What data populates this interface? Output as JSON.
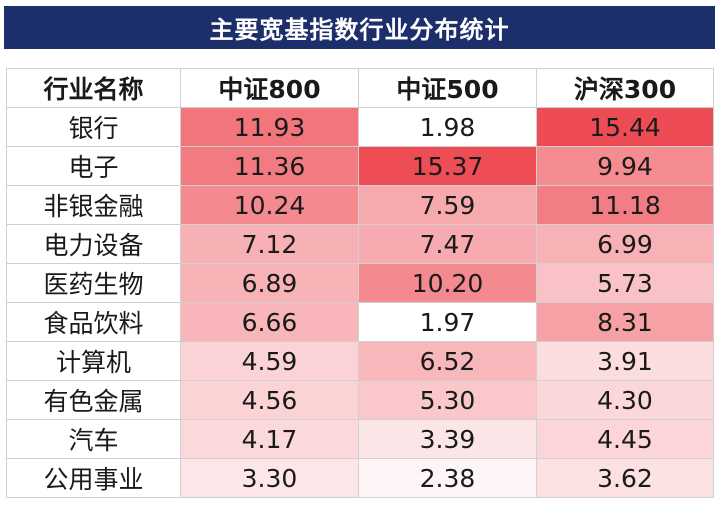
{
  "title": "主要宽基指数行业分布统计",
  "chart_data": {
    "type": "table",
    "title": "主要宽基指数行业分布统计",
    "columns": [
      "行业名称",
      "中证800",
      "中证500",
      "沪深300"
    ],
    "rows": [
      {
        "industry": "银行",
        "values": [
          "11.93",
          "1.98",
          "15.44"
        ]
      },
      {
        "industry": "电子",
        "values": [
          "11.36",
          "15.37",
          "9.94"
        ]
      },
      {
        "industry": "非银金融",
        "values": [
          "10.24",
          "7.59",
          "11.18"
        ]
      },
      {
        "industry": "电力设备",
        "values": [
          "7.12",
          "7.47",
          "6.99"
        ]
      },
      {
        "industry": "医药生物",
        "values": [
          "6.89",
          "10.20",
          "5.73"
        ]
      },
      {
        "industry": "食品饮料",
        "values": [
          "6.66",
          "1.97",
          "8.31"
        ]
      },
      {
        "industry": "计算机",
        "values": [
          "4.59",
          "6.52",
          "3.91"
        ]
      },
      {
        "industry": "有色金属",
        "values": [
          "4.56",
          "5.30",
          "4.30"
        ]
      },
      {
        "industry": "汽车",
        "values": [
          "4.17",
          "3.39",
          "4.45"
        ]
      },
      {
        "industry": "公用事业",
        "values": [
          "3.30",
          "2.38",
          "3.62"
        ]
      }
    ],
    "heat_color_low": "#ffffff",
    "heat_color_high": "#ee4c55"
  }
}
